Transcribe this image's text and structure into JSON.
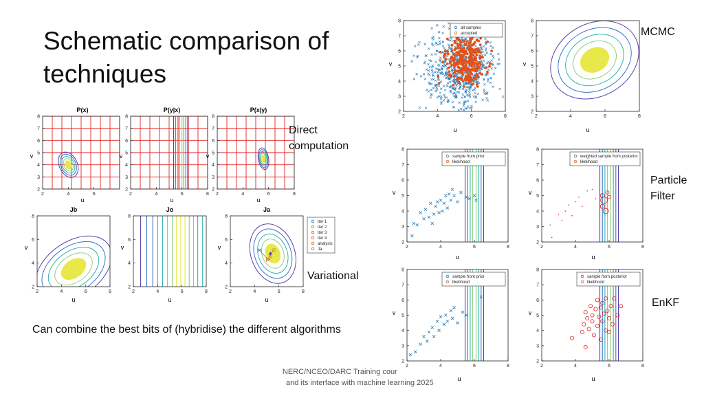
{
  "slide": {
    "title": "Schematic comparison of techniques",
    "labels": {
      "direct": "Direct computation",
      "variational": "Variational",
      "mcmc": "MCMC",
      "pf": "Particle Filter",
      "enkf": "EnKF"
    },
    "note": "Can combine the best bits of (hybridise) the different algorithms",
    "footer": [
      "NERC/NCEO/DARC Training cour",
      "and its interface with machine learning 2025"
    ]
  },
  "colors": {
    "blue": "#1f77b4",
    "orange": "#e0521c",
    "red": "#e02020",
    "purple": "#5b3fa8",
    "contours": [
      "#5b3fa8",
      "#3b73c4",
      "#2fb3b0",
      "#8fd17a",
      "#e8e84a"
    ]
  },
  "chart_data": [
    {
      "id": "px",
      "type": "contour",
      "title": "P(x)",
      "xlabel": "u",
      "ylabel": "v",
      "xlim": [
        2,
        8
      ],
      "ylim": [
        2,
        8
      ],
      "xticks": [
        2,
        4,
        6
      ],
      "yticks": [
        2,
        3,
        4,
        5,
        6,
        7,
        8
      ],
      "grid": "red",
      "overlay": "ellipse",
      "ellipse": {
        "cx": 4,
        "cy": 4,
        "rx": 0.7,
        "ry": 1.1,
        "angle": -25
      }
    },
    {
      "id": "pyx",
      "type": "contour",
      "title": "P(y|x)",
      "xlabel": "u",
      "ylabel": "v",
      "xlim": [
        2,
        8
      ],
      "ylim": [
        2,
        8
      ],
      "xticks": [
        2,
        4,
        6,
        8
      ],
      "yticks": [
        2,
        3,
        4,
        5,
        6,
        7,
        8
      ],
      "grid": "red",
      "overlay": "vlines",
      "vlines_center": 5.9
    },
    {
      "id": "pxy",
      "type": "contour",
      "title": "P(x|y)",
      "xlabel": "u",
      "ylabel": "v",
      "xlim": [
        2,
        8
      ],
      "ylim": [
        2,
        8
      ],
      "xticks": [
        2,
        4,
        6,
        8
      ],
      "yticks": [
        2,
        3,
        4,
        5,
        6,
        7,
        8
      ],
      "grid": "red",
      "overlay": "ellipse",
      "ellipse": {
        "cx": 5.6,
        "cy": 4.5,
        "rx": 0.4,
        "ry": 0.9,
        "angle": -10
      }
    },
    {
      "id": "jb",
      "type": "contour",
      "title": "Jb",
      "xlabel": "u",
      "ylabel": "v",
      "xlim": [
        2,
        8
      ],
      "ylim": [
        2,
        8
      ],
      "xticks": [
        2,
        4,
        6,
        8
      ],
      "yticks": [
        2,
        4,
        6,
        8
      ],
      "overlay": "ellipse",
      "ellipse": {
        "cx": 5,
        "cy": 3.5,
        "rx": 3.5,
        "ry": 2.3,
        "angle": -35
      }
    },
    {
      "id": "jo",
      "type": "contour",
      "title": "Jo",
      "xlabel": "u",
      "ylabel": "v",
      "xlim": [
        2,
        8
      ],
      "ylim": [
        2,
        8
      ],
      "xticks": [
        2,
        4,
        6,
        8
      ],
      "yticks": [
        2,
        4,
        6,
        8
      ],
      "overlay": "vlines_wide",
      "vlines_center": 5.9
    },
    {
      "id": "ja",
      "type": "contour",
      "title": "Ja",
      "xlabel": "u",
      "ylabel": "v",
      "xlim": [
        2,
        8
      ],
      "ylim": [
        2,
        8
      ],
      "xticks": [
        2,
        4,
        6,
        8
      ],
      "yticks": [
        2,
        4,
        6,
        8
      ],
      "overlay": "ellipse",
      "ellipse": {
        "cx": 5.5,
        "cy": 4.8,
        "rx": 1.8,
        "ry": 2.6,
        "angle": -20
      },
      "legend": [
        "iter 1",
        "iter 2",
        "iter 3",
        "iter 4",
        "analysis",
        "Ja"
      ],
      "iterations": [
        [
          4.4,
          5.1
        ],
        [
          5.1,
          4.3
        ],
        [
          5.3,
          4.6
        ],
        [
          5.3,
          4.8
        ],
        [
          5.6,
          5.1
        ]
      ]
    },
    {
      "id": "mcmc_scatter",
      "type": "scatter",
      "xlabel": "u",
      "ylabel": "v",
      "xlim": [
        2,
        8
      ],
      "ylim": [
        2,
        8
      ],
      "xticks": [
        2,
        4,
        6,
        8
      ],
      "yticks": [
        2,
        3,
        4,
        5,
        6,
        7,
        8
      ],
      "legend": [
        "all samples",
        "accepted"
      ],
      "series": [
        {
          "name": "all samples",
          "center": [
            5.3,
            4.8
          ],
          "spread": [
            1.1,
            1.3
          ],
          "count": 650
        },
        {
          "name": "accepted",
          "center": [
            5.7,
            5.3
          ],
          "spread": [
            0.55,
            0.8
          ],
          "count": 320
        }
      ]
    },
    {
      "id": "mcmc_contour",
      "type": "contour",
      "xlabel": "u",
      "ylabel": "v",
      "xlim": [
        2,
        8
      ],
      "ylim": [
        2,
        8
      ],
      "xticks": [
        2,
        4,
        6,
        8
      ],
      "yticks": [
        2,
        3,
        4,
        5,
        6,
        7,
        8
      ],
      "overlay": "ellipse",
      "ellipse": {
        "cx": 5.4,
        "cy": 5.4,
        "rx": 2.7,
        "ry": 2.4,
        "angle": -30
      }
    },
    {
      "id": "pf_prior",
      "type": "scatter",
      "xlabel": "u",
      "ylabel": "v",
      "xlim": [
        2,
        8
      ],
      "ylim": [
        2,
        8
      ],
      "xticks": [
        2,
        4,
        6,
        8
      ],
      "yticks": [
        2,
        3,
        4,
        5,
        6,
        7,
        8
      ],
      "legend": [
        "sample from prior",
        "likelihood"
      ],
      "overlay": "vlines",
      "vlines_center": 6,
      "points": [
        [
          2.3,
          2.4
        ],
        [
          2.4,
          3.2
        ],
        [
          2.6,
          3.1
        ],
        [
          2.8,
          3.9
        ],
        [
          3.0,
          3.5
        ],
        [
          3.1,
          4.1
        ],
        [
          3.3,
          3.6
        ],
        [
          3.4,
          4.5
        ],
        [
          3.5,
          3.2
        ],
        [
          3.6,
          3.8
        ],
        [
          3.7,
          4.3
        ],
        [
          3.8,
          4.6
        ],
        [
          3.9,
          3.9
        ],
        [
          4.0,
          4.7
        ],
        [
          4.1,
          4.0
        ],
        [
          4.2,
          4.5
        ],
        [
          4.3,
          5.0
        ],
        [
          4.4,
          4.2
        ],
        [
          4.5,
          5.1
        ],
        [
          4.6,
          4.7
        ],
        [
          4.7,
          5.4
        ],
        [
          4.8,
          5.0
        ],
        [
          5.0,
          4.6
        ],
        [
          5.2,
          5.2
        ],
        [
          5.5,
          4.9
        ],
        [
          5.7,
          4.8
        ],
        [
          6.0,
          5.0
        ],
        [
          6.1,
          4.7
        ]
      ]
    },
    {
      "id": "pf_post",
      "type": "scatter",
      "xlabel": "u",
      "ylabel": "v",
      "xlim": [
        2,
        8
      ],
      "ylim": [
        2,
        8
      ],
      "xticks": [
        2,
        4,
        6,
        8
      ],
      "yticks": [
        2,
        3,
        4,
        5,
        6,
        7,
        8
      ],
      "legend": [
        "weighted sample from posterior",
        "likelihood"
      ],
      "overlay": "vlines",
      "vlines_center": 6,
      "points": [
        [
          2.5,
          3.1
        ],
        [
          2.6,
          2.3
        ],
        [
          3.0,
          3.8
        ],
        [
          3.2,
          3.4
        ],
        [
          3.4,
          4.0
        ],
        [
          3.6,
          4.4
        ],
        [
          3.8,
          3.7
        ],
        [
          4.0,
          4.6
        ],
        [
          4.2,
          4.9
        ],
        [
          4.4,
          4.3
        ],
        [
          4.7,
          5.3
        ],
        [
          5.0,
          5.4
        ],
        [
          5.2,
          4.8
        ]
      ],
      "circles": [
        [
          5.6,
          5.0,
          0.12
        ],
        [
          5.7,
          4.7,
          0.2
        ],
        [
          5.8,
          4.0,
          0.16
        ],
        [
          5.9,
          5.2,
          0.1
        ],
        [
          5.6,
          4.3,
          0.12
        ],
        [
          6.0,
          4.9,
          0.1
        ]
      ]
    },
    {
      "id": "enkf_prior",
      "type": "scatter",
      "xlabel": "u",
      "ylabel": "v",
      "xlim": [
        2,
        8
      ],
      "ylim": [
        2,
        8
      ],
      "xticks": [
        2,
        4,
        6,
        8
      ],
      "yticks": [
        2,
        3,
        4,
        5,
        6,
        7,
        8
      ],
      "legend": [
        "sample from prior",
        "likelihood"
      ],
      "overlay": "vlines",
      "vlines_center": 6,
      "points": [
        [
          2.2,
          2.4
        ],
        [
          2.5,
          2.6
        ],
        [
          2.8,
          3.1
        ],
        [
          3.0,
          3.6
        ],
        [
          3.2,
          3.3
        ],
        [
          3.3,
          3.9
        ],
        [
          3.5,
          4.2
        ],
        [
          3.6,
          3.6
        ],
        [
          3.8,
          4.6
        ],
        [
          3.9,
          4.0
        ],
        [
          4.0,
          4.9
        ],
        [
          4.2,
          4.4
        ],
        [
          4.3,
          5.0
        ],
        [
          4.4,
          4.6
        ],
        [
          4.6,
          5.3
        ],
        [
          4.7,
          4.8
        ],
        [
          4.8,
          5.5
        ],
        [
          5.0,
          4.5
        ],
        [
          5.3,
          5.2
        ],
        [
          5.5,
          5.0
        ],
        [
          6.4,
          6.2
        ]
      ]
    },
    {
      "id": "enkf_post",
      "type": "scatter",
      "xlabel": "u",
      "ylabel": "v",
      "xlim": [
        2,
        8
      ],
      "ylim": [
        2,
        8
      ],
      "xticks": [
        2,
        4,
        6,
        8
      ],
      "yticks": [
        2,
        3,
        4,
        5,
        6,
        7,
        8
      ],
      "legend": [
        "sample from posterior",
        "likelihood"
      ],
      "overlay": "vlines",
      "vlines_center": 6,
      "points": [
        [
          3.8,
          3.5
        ],
        [
          4.4,
          3.9
        ],
        [
          4.5,
          4.4
        ],
        [
          4.6,
          5.2
        ],
        [
          4.7,
          4.8
        ],
        [
          4.8,
          4.1
        ],
        [
          4.9,
          5.6
        ],
        [
          5.0,
          4.6
        ],
        [
          5.0,
          5.0
        ],
        [
          5.1,
          3.7
        ],
        [
          5.2,
          5.4
        ],
        [
          5.3,
          4.3
        ],
        [
          5.3,
          6.0
        ],
        [
          5.4,
          4.9
        ],
        [
          5.5,
          5.5
        ],
        [
          5.6,
          4.6
        ],
        [
          5.6,
          5.8
        ],
        [
          5.7,
          5.1
        ],
        [
          5.8,
          4.0
        ],
        [
          5.8,
          6.1
        ],
        [
          5.9,
          5.3
        ],
        [
          6.0,
          4.8
        ],
        [
          6.1,
          5.6
        ],
        [
          6.2,
          4.4
        ],
        [
          6.3,
          6.1
        ],
        [
          6.5,
          5.0
        ],
        [
          6.7,
          5.6
        ],
        [
          4.6,
          2.9
        ],
        [
          5.5,
          3.4
        ],
        [
          6.0,
          3.9
        ]
      ]
    }
  ]
}
